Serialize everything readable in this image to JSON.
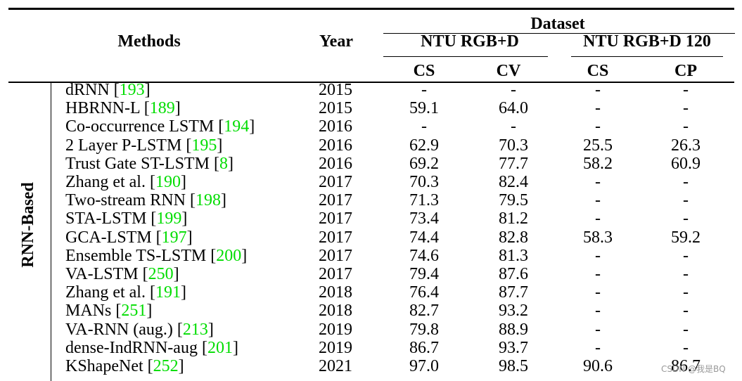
{
  "header": {
    "methods": "Methods",
    "year": "Year",
    "dataset": "Dataset",
    "groups": [
      "NTU RGB+D",
      "NTU RGB+D 120"
    ],
    "columns": [
      "CS",
      "CV",
      "CS",
      "CP"
    ]
  },
  "group_label": "RNN-Based",
  "bracket_open": "[",
  "bracket_close": "]",
  "rows": [
    {
      "method": "dRNN",
      "ref": "193",
      "year": "2015",
      "values": [
        "-",
        "-",
        "-",
        "-"
      ]
    },
    {
      "method": "HBRNN-L",
      "ref": "189",
      "year": "2015",
      "values": [
        "59.1",
        "64.0",
        "-",
        "-"
      ]
    },
    {
      "method": "Co-occurrence LSTM",
      "ref": "194",
      "year": "2016",
      "values": [
        "-",
        "-",
        "-",
        "-"
      ]
    },
    {
      "method": "2 Layer P-LSTM",
      "ref": "195",
      "year": "2016",
      "values": [
        "62.9",
        "70.3",
        "25.5",
        "26.3"
      ]
    },
    {
      "method": "Trust Gate ST-LSTM",
      "ref": "8",
      "year": "2016",
      "values": [
        "69.2",
        "77.7",
        "58.2",
        "60.9"
      ]
    },
    {
      "method": "Zhang et al.",
      "ref": "190",
      "year": "2017",
      "values": [
        "70.3",
        "82.4",
        "-",
        "-"
      ]
    },
    {
      "method": "Two-stream RNN",
      "ref": "198",
      "year": "2017",
      "values": [
        "71.3",
        "79.5",
        "-",
        "-"
      ]
    },
    {
      "method": "STA-LSTM",
      "ref": "199",
      "year": "2017",
      "values": [
        "73.4",
        "81.2",
        "-",
        "-"
      ]
    },
    {
      "method": "GCA-LSTM",
      "ref": "197",
      "year": "2017",
      "values": [
        "74.4",
        "82.8",
        "58.3",
        "59.2"
      ]
    },
    {
      "method": "Ensemble TS-LSTM",
      "ref": "200",
      "year": "2017",
      "values": [
        "74.6",
        "81.3",
        "-",
        "-"
      ]
    },
    {
      "method": "VA-LSTM",
      "ref": "250",
      "year": "2017",
      "values": [
        "79.4",
        "87.6",
        "-",
        "-"
      ]
    },
    {
      "method": "Zhang et al.",
      "ref": "191",
      "year": "2018",
      "values": [
        "76.4",
        "87.7",
        "-",
        "-"
      ]
    },
    {
      "method": "MANs",
      "ref": "251",
      "year": "2018",
      "values": [
        "82.7",
        "93.2",
        "-",
        "-"
      ]
    },
    {
      "method": "VA-RNN (aug.)",
      "ref": "213",
      "year": "2019",
      "values": [
        "79.8",
        "88.9",
        "-",
        "-"
      ]
    },
    {
      "method": "dense-IndRNN-aug",
      "ref": "201",
      "year": "2019",
      "values": [
        "86.7",
        "93.7",
        "-",
        "-"
      ]
    },
    {
      "method": "KShapeNet",
      "ref": "252",
      "year": "2021",
      "values": [
        "97.0",
        "98.5",
        "90.6",
        "86.7"
      ]
    }
  ],
  "watermark": "CSDN @我是BQ"
}
